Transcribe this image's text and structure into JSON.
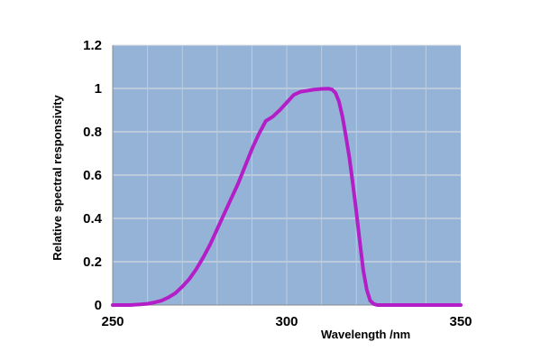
{
  "chart_data": {
    "type": "line",
    "title": "",
    "xlabel": "Wavelength /nm",
    "ylabel": "Relative spectral responsivity",
    "xlim": [
      250,
      350
    ],
    "ylim": [
      0,
      1.2
    ],
    "x_ticks": [
      "250",
      "300",
      "350"
    ],
    "y_ticks": [
      "0",
      "0.2",
      "0.4",
      "0.6",
      "0.8",
      "1",
      "1.2"
    ],
    "grid": true,
    "legend": "none",
    "plot_background": "#95b3d7",
    "series_color": "#b31ec6",
    "series": [
      {
        "x": [
          250,
          255,
          258,
          260,
          262,
          264,
          266,
          268,
          270,
          272,
          274,
          276,
          278,
          280,
          282,
          284,
          286,
          288,
          290,
          292,
          294,
          296,
          298,
          300,
          302,
          304,
          306,
          308,
          310,
          312,
          313,
          314,
          315,
          316,
          317,
          318,
          319,
          320,
          321,
          322,
          323,
          324,
          325,
          326,
          330,
          340,
          350
        ],
        "y": [
          0.0,
          0.0,
          0.003,
          0.006,
          0.012,
          0.02,
          0.035,
          0.055,
          0.085,
          0.12,
          0.165,
          0.22,
          0.28,
          0.35,
          0.42,
          0.49,
          0.56,
          0.64,
          0.72,
          0.79,
          0.85,
          0.87,
          0.9,
          0.935,
          0.97,
          0.985,
          0.99,
          0.995,
          0.998,
          0.999,
          0.995,
          0.98,
          0.94,
          0.87,
          0.78,
          0.68,
          0.56,
          0.43,
          0.29,
          0.16,
          0.07,
          0.02,
          0.005,
          0.0,
          0.0,
          0.0,
          0.0
        ]
      }
    ]
  }
}
